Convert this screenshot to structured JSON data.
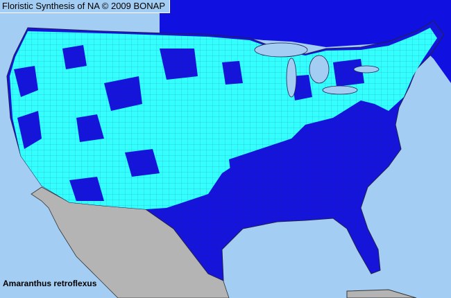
{
  "header": {
    "title": "Floristic Synthesis of NA © 2009 BONAP"
  },
  "map": {
    "species": "Amaranthus retroflexus",
    "colors": {
      "ocean": "#a3cdf2",
      "present_county": "#33ffff",
      "present_state": "#1414dc",
      "outside_region": "#b4b4b4",
      "canada": "#1010e0",
      "lakes": "#a3cdf2",
      "borders": "#303060"
    }
  }
}
